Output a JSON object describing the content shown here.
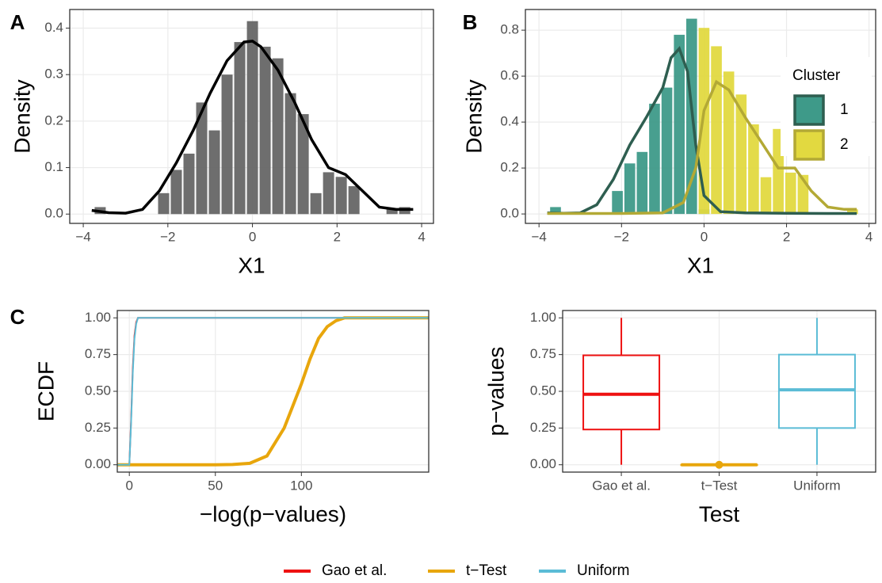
{
  "chart_data": [
    {
      "type": "histogram",
      "panel_label": "A",
      "x_label": "X1",
      "y_label": "Density",
      "bins": [
        -3.75,
        -3.45,
        -3.15,
        -2.85,
        -2.55,
        -2.25,
        -1.95,
        -1.65,
        -1.35,
        -1.05,
        -0.75,
        -0.45,
        -0.15,
        0.15,
        0.45,
        0.75,
        1.05,
        1.35,
        1.65,
        1.95,
        2.25,
        2.55,
        2.85,
        3.15,
        3.45,
        3.75
      ],
      "series": [
        {
          "color": "#666666",
          "line_color": "#000000",
          "values": [
            0.015,
            0,
            0,
            0,
            0,
            0.045,
            0.095,
            0.13,
            0.24,
            0.18,
            0.3,
            0.37,
            0.415,
            0.36,
            0.335,
            0.26,
            0.215,
            0.045,
            0.09,
            0.08,
            0.06,
            0,
            0,
            0.01,
            0.015
          ],
          "density": {
            "x": [
              -3.8,
              -3.4,
              -3,
              -2.6,
              -2.2,
              -1.8,
              -1.4,
              -1,
              -0.6,
              -0.2,
              0,
              0.2,
              0.6,
              1,
              1.4,
              1.8,
              2.2,
              2.6,
              3,
              3.4,
              3.8
            ],
            "y": [
              0.008,
              0.003,
              0.002,
              0.01,
              0.05,
              0.11,
              0.18,
              0.26,
              0.33,
              0.37,
              0.372,
              0.36,
              0.31,
              0.24,
              0.16,
              0.1,
              0.085,
              0.05,
              0.015,
              0.01,
              0.01
            ]
          }
        }
      ],
      "xlim": [
        -4.32,
        4.28
      ],
      "ylim": [
        -0.02,
        0.44
      ],
      "xticks": [
        {
          "value": -4,
          "label": "−4"
        },
        {
          "value": -2,
          "label": "−2"
        },
        0,
        2,
        4
      ],
      "yticks": [
        {
          "value": 0,
          "label": "0.0"
        },
        0.1,
        0.2,
        0.3,
        0.4
      ],
      "grid": true
    },
    {
      "type": "histogram",
      "panel_label": "B",
      "x_label": "X1",
      "y_label": "Density",
      "legend_title": "Cluster",
      "bins": [
        -3.75,
        -3.45,
        -3.15,
        -2.85,
        -2.55,
        -2.25,
        -1.95,
        -1.65,
        -1.35,
        -1.05,
        -0.75,
        -0.45,
        -0.15,
        0.15,
        0.45,
        0.75,
        1.05,
        1.35,
        1.65,
        1.95,
        2.25,
        2.55,
        2.85,
        3.15,
        3.45,
        3.75
      ],
      "series": [
        {
          "name": "1",
          "color": "#3e9a89",
          "line_color": "#2e5e50",
          "values": [
            0.03,
            0,
            0,
            0,
            0,
            0.1,
            0.22,
            0.27,
            0.48,
            0.55,
            0.78,
            0.85,
            0.02,
            0,
            0,
            0,
            0,
            0,
            0,
            0,
            0,
            0,
            0,
            0,
            0
          ],
          "density": {
            "x": [
              -3.8,
              -3.4,
              -3,
              -2.6,
              -2.2,
              -1.8,
              -1.4,
              -1,
              -0.8,
              -0.6,
              -0.4,
              -0.2,
              0,
              0.4,
              1,
              2,
              3,
              3.7
            ],
            "y": [
              0.005,
              0.003,
              0.005,
              0.04,
              0.15,
              0.3,
              0.42,
              0.55,
              0.68,
              0.72,
              0.62,
              0.3,
              0.08,
              0.01,
              0.005,
              0.003,
              0.002,
              0.002
            ]
          }
        },
        {
          "name": "2",
          "color": "#e2d940",
          "line_color": "#b3a935",
          "values": [
            0,
            0,
            0,
            0,
            0,
            0,
            0,
            0,
            0,
            0,
            0,
            0,
            0.81,
            0.73,
            0.62,
            0.52,
            0.39,
            0.16,
            0.37,
            0.18,
            0.17,
            0,
            0,
            0,
            0.02
          ],
          "density": {
            "x": [
              -3.8,
              -2,
              -1,
              -0.5,
              -0.2,
              0,
              0.3,
              0.6,
              1,
              1.4,
              1.8,
              2.2,
              2.6,
              3,
              3.4,
              3.7
            ],
            "y": [
              0.002,
              0.002,
              0.005,
              0.05,
              0.2,
              0.45,
              0.575,
              0.54,
              0.42,
              0.31,
              0.2,
              0.2,
              0.1,
              0.03,
              0.02,
              0.02
            ]
          }
        }
      ],
      "xlim": [
        -4.33,
        4.16
      ],
      "ylim": [
        -0.041,
        0.89
      ],
      "xticks": [
        {
          "value": -4,
          "label": "−4"
        },
        {
          "value": -2,
          "label": "−2"
        },
        0,
        2,
        4
      ],
      "yticks": [
        {
          "value": 0,
          "label": "0.0"
        },
        0.2,
        0.4,
        0.6,
        0.8
      ],
      "grid": true
    },
    {
      "type": "line",
      "panel_label": "C",
      "x_label": "−log(p−values)",
      "y_label": "ECDF",
      "series": [
        {
          "name": "Gao et al.",
          "color": "#ee1111",
          "x": [
            -7,
            0,
            1,
            2,
            3,
            4,
            5,
            174
          ],
          "y": [
            0,
            0,
            0.3,
            0.65,
            0.88,
            0.97,
            1,
            1
          ]
        },
        {
          "name": "t−Test",
          "color": "#e8a60c",
          "x": [
            -7,
            50,
            60,
            70,
            80,
            90,
            95,
            100,
            105,
            110,
            115,
            120,
            125,
            174
          ],
          "y": [
            0,
            0,
            0.002,
            0.01,
            0.06,
            0.25,
            0.4,
            0.55,
            0.72,
            0.86,
            0.94,
            0.98,
            1,
            1
          ]
        },
        {
          "name": "Uniform",
          "color": "#5bbcd6",
          "x": [
            -7,
            0,
            1,
            2,
            3,
            4,
            5,
            174
          ],
          "y": [
            0,
            0,
            0.28,
            0.62,
            0.86,
            0.96,
            1,
            1
          ]
        }
      ],
      "xlim": [
        -7,
        174
      ],
      "ylim": [
        -0.05,
        1.05
      ],
      "xticks": [
        0,
        50,
        100
      ],
      "yticks": [
        {
          "value": 0,
          "label": "0.00"
        },
        {
          "value": 0.25,
          "label": "0.25"
        },
        {
          "value": 0.5,
          "label": "0.50"
        },
        {
          "value": 0.75,
          "label": "0.75"
        },
        {
          "value": 1,
          "label": "1.00"
        }
      ],
      "grid": true,
      "legend_position": "bottom"
    },
    {
      "type": "box",
      "x_label": "Test",
      "y_label": "p−values",
      "categories": [
        "Gao et al.",
        "t−Test",
        "Uniform"
      ],
      "colors": [
        "#ee1111",
        "#e8a60c",
        "#5bbcd6"
      ],
      "min": [
        0,
        0,
        0
      ],
      "q1": [
        0.24,
        0,
        0.25
      ],
      "median": [
        0.48,
        0,
        0.51
      ],
      "q3": [
        0.745,
        0,
        0.75
      ],
      "max": [
        1,
        0,
        1
      ],
      "outliers": [
        [],
        [
          0
        ],
        []
      ],
      "ylim": [
        -0.05,
        1.05
      ],
      "yticks": [
        {
          "value": 0,
          "label": "0.00"
        },
        {
          "value": 0.25,
          "label": "0.25"
        },
        {
          "value": 0.5,
          "label": "0.50"
        },
        {
          "value": 0.75,
          "label": "0.75"
        },
        {
          "value": 1,
          "label": "1.00"
        }
      ],
      "grid": true
    }
  ]
}
